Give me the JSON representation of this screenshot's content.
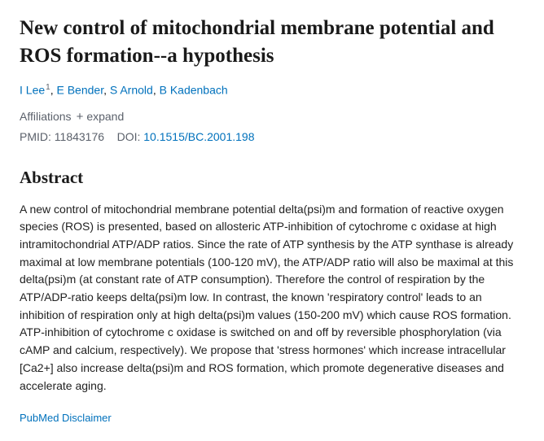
{
  "title": "New control of mitochondrial membrane potential and ROS formation--a hypothesis",
  "authors": [
    {
      "name": "I Lee",
      "affil": "1"
    },
    {
      "name": "E Bender",
      "affil": ""
    },
    {
      "name": "S Arnold",
      "affil": ""
    },
    {
      "name": "B Kadenbach",
      "affil": ""
    }
  ],
  "meta": {
    "affiliations_label": "Affiliations",
    "expand_label": "expand",
    "pmid_label": "PMID:",
    "pmid_value": "11843176",
    "doi_label": "DOI:",
    "doi_value": "10.1515/BC.2001.198"
  },
  "abstract": {
    "heading": "Abstract",
    "body": "A new control of mitochondrial membrane potential delta(psi)m and formation of reactive oxygen species (ROS) is presented, based on allosteric ATP-inhibition of cytochrome c oxidase at high intramitochondrial ATP/ADP ratios. Since the rate of ATP synthesis by the ATP synthase is already maximal at low membrane potentials (100-120 mV), the ATP/ADP ratio will also be maximal at this delta(psi)m (at constant rate of ATP consumption). Therefore the control of respiration by the ATP/ADP-ratio keeps delta(psi)m low. In contrast, the known 'respiratory control' leads to an inhibition of respiration only at high delta(psi)m values (150-200 mV) which cause ROS formation. ATP-inhibition of cytochrome c oxidase is switched on and off by reversible phosphorylation (via cAMP and calcium, respectively). We propose that 'stress hormones' which increase intracellular [Ca2+] also increase delta(psi)m and ROS formation, which promote degenerative diseases and accelerate aging."
  },
  "disclaimer_label": "PubMed Disclaimer",
  "colors": {
    "link": "#0071bc",
    "text": "#212121",
    "muted": "#5b616b",
    "background": "#ffffff"
  }
}
